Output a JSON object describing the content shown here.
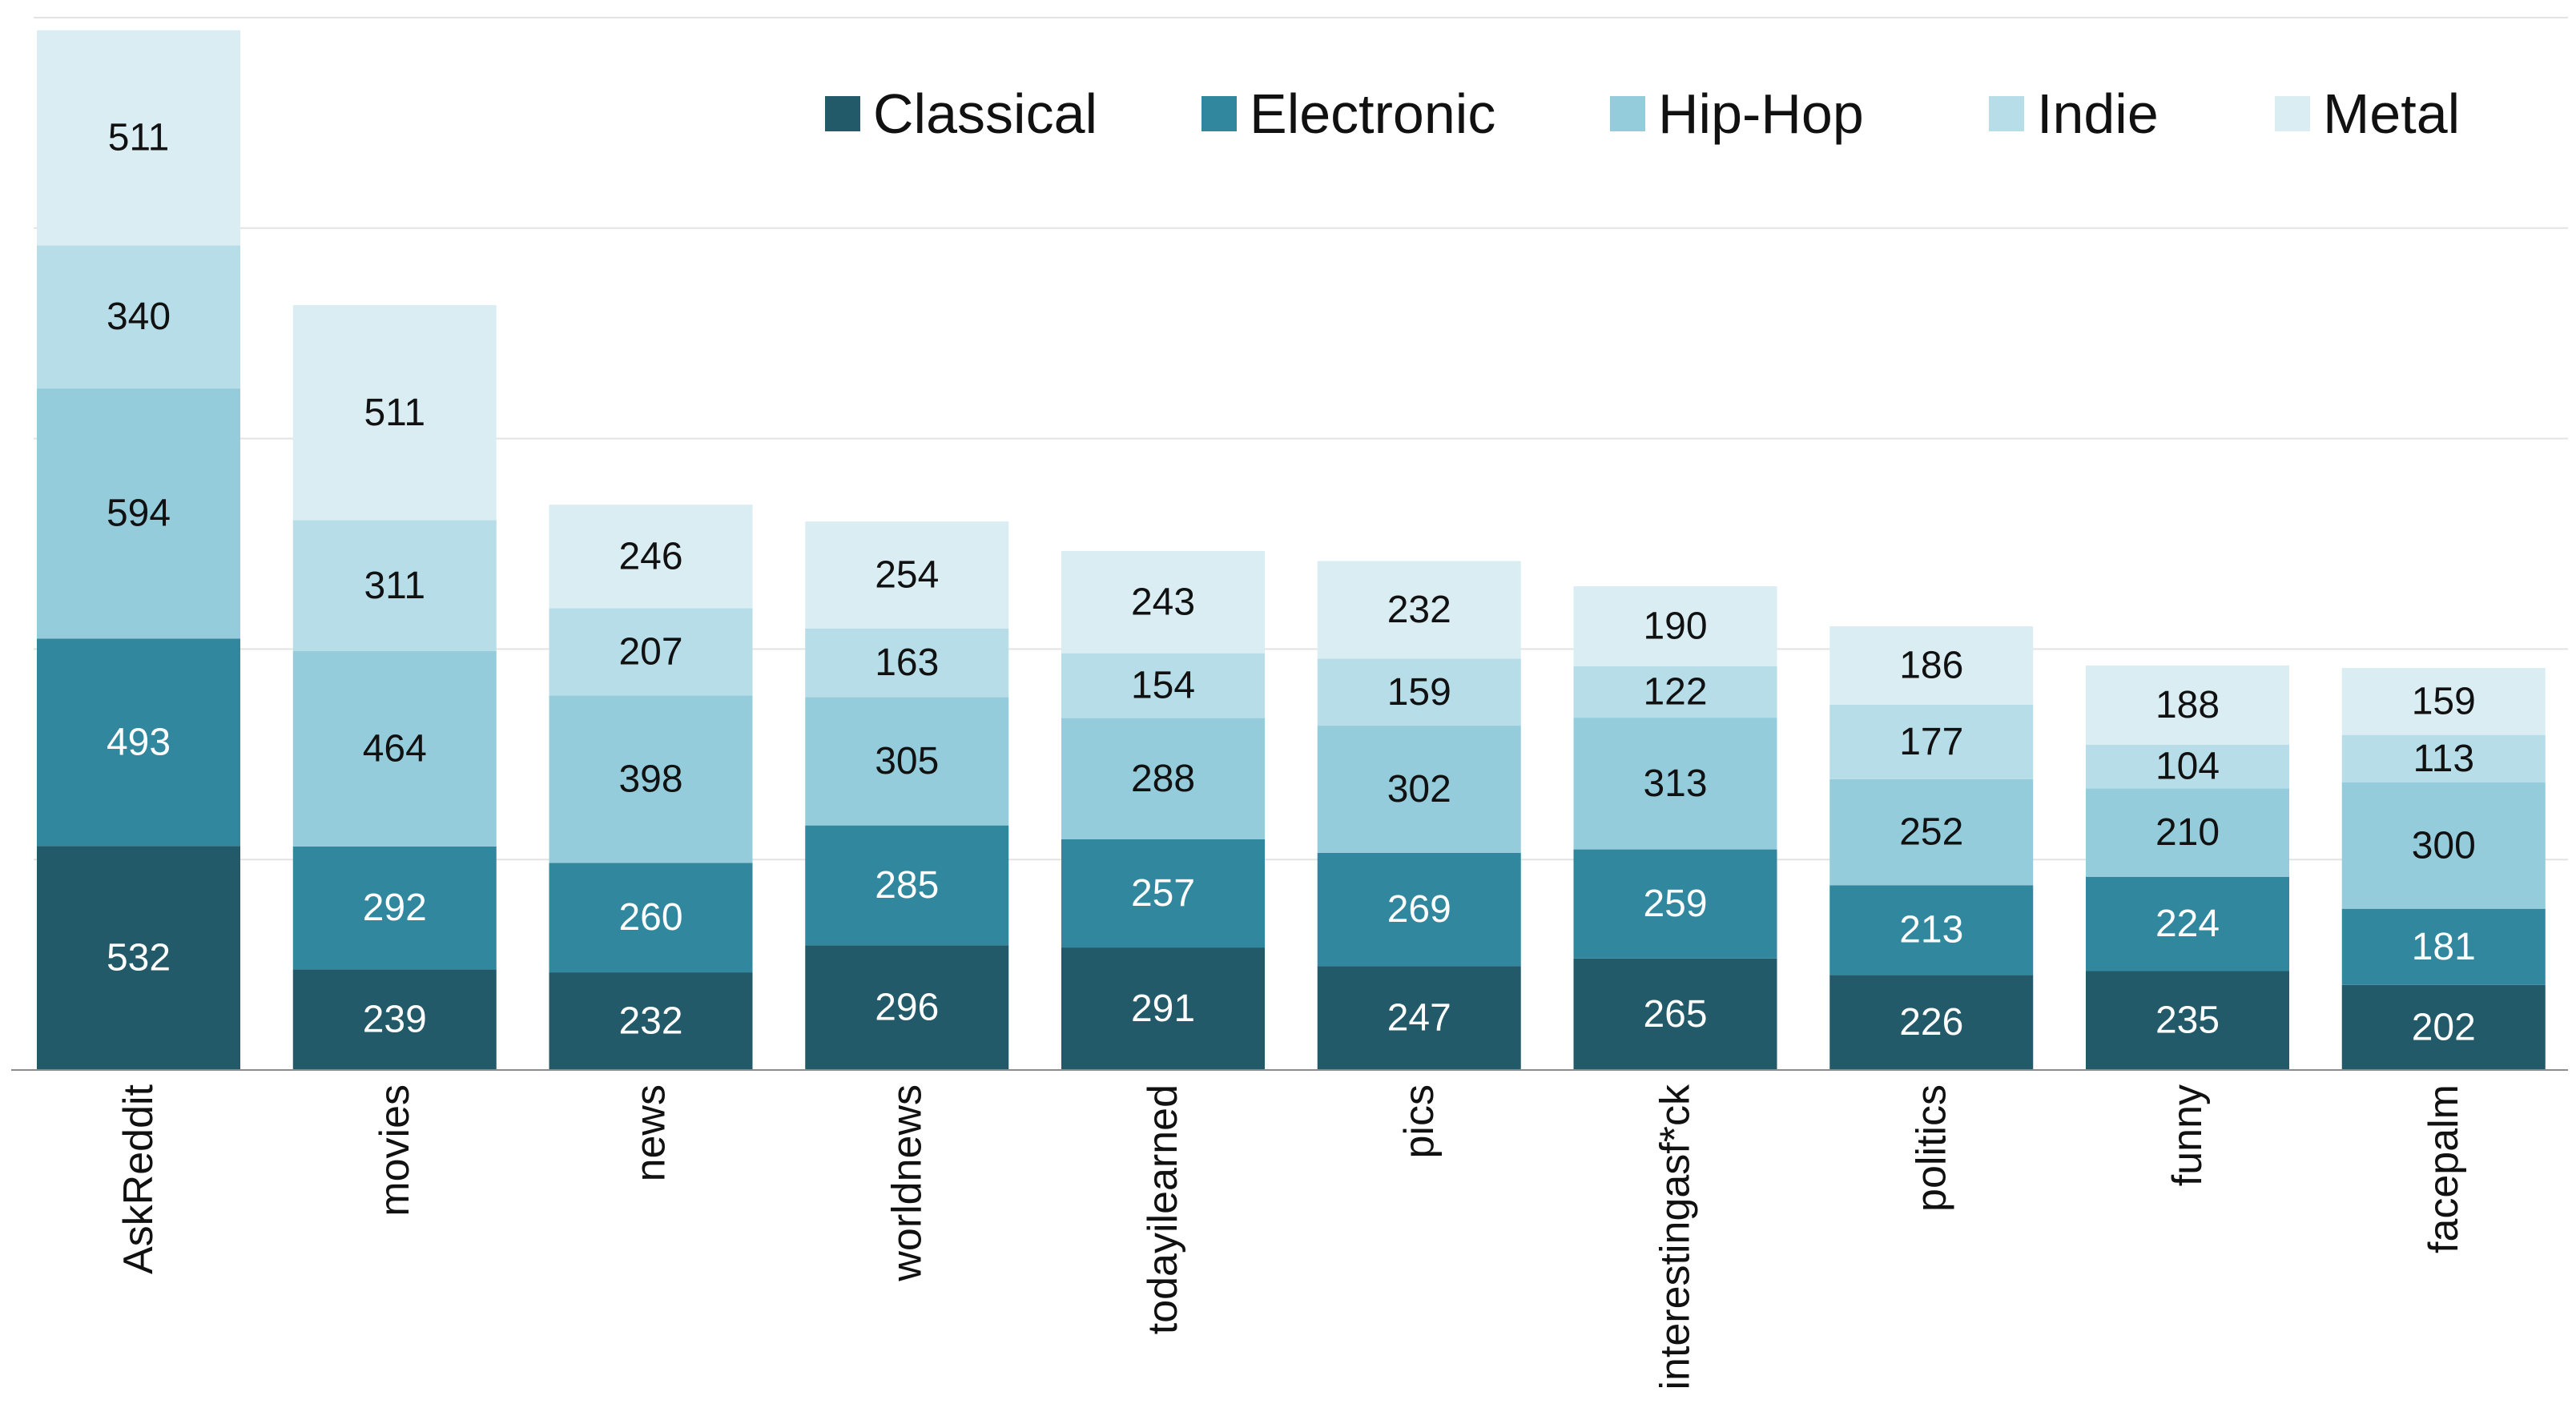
{
  "chart_data": {
    "type": "bar",
    "stacked": true,
    "title": "",
    "xlabel": "",
    "ylabel": "",
    "categories": [
      "AskReddit",
      "movies",
      "news",
      "worldnews",
      "todayilearned",
      "pics",
      "interestingasf*ck",
      "politics",
      "funny",
      "facepalm"
    ],
    "series": [
      {
        "name": "Classical",
        "color": "#235A6A",
        "label_color": "#ffffff",
        "values": [
          532,
          239,
          232,
          296,
          291,
          247,
          265,
          226,
          235,
          202
        ]
      },
      {
        "name": "Electronic",
        "color": "#31889E",
        "label_color": "#ffffff",
        "values": [
          493,
          292,
          260,
          285,
          257,
          269,
          259,
          213,
          224,
          181
        ]
      },
      {
        "name": "Hip-Hop",
        "color": "#94CCDC",
        "label_color": "#111111",
        "values": [
          594,
          464,
          398,
          305,
          288,
          302,
          313,
          252,
          210,
          300
        ]
      },
      {
        "name": "Indie",
        "color": "#B7DEE8",
        "label_color": "#111111",
        "values": [
          340,
          311,
          207,
          163,
          154,
          159,
          122,
          177,
          104,
          113
        ]
      },
      {
        "name": "Metal",
        "color": "#DAEDF3",
        "label_color": "#111111",
        "values": [
          511,
          511,
          246,
          254,
          243,
          232,
          190,
          186,
          188,
          159
        ]
      }
    ],
    "ylim": [
      0,
      2500
    ],
    "y_gridlines": [
      0,
      500,
      1000,
      1500,
      2000,
      2500
    ],
    "y_tick_labels_visible": false,
    "grid": true,
    "legend_position": "top-right",
    "x_label_rotation": "vertical"
  }
}
